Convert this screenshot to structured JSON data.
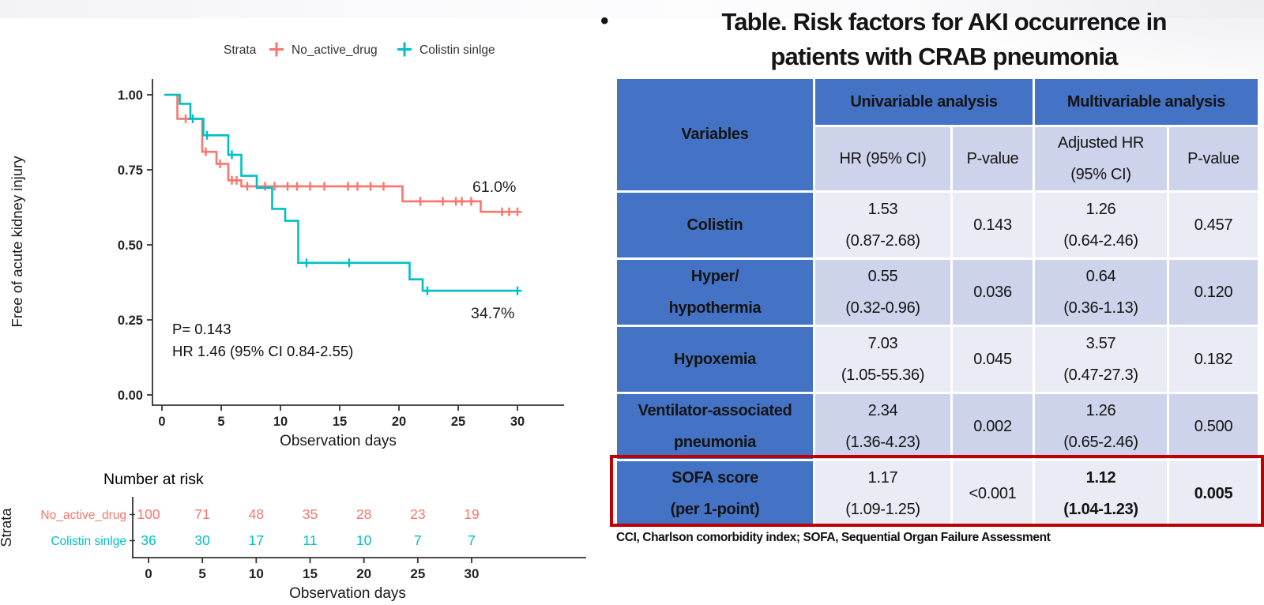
{
  "slide": {
    "title_bullet": "•",
    "title_line1": "Table. Risk factors for AKI occurrence in",
    "title_line2": "patients with CRAB pneumonia"
  },
  "table": {
    "header": {
      "variables": "Variables",
      "univariable": "Univariable analysis",
      "multivariable": "Multivariable analysis",
      "uni_hr": "HR (95% CI)",
      "uni_p": "P-value",
      "multi_hr_line1": "Adjusted HR",
      "multi_hr_line2": "(95% CI)",
      "multi_p": "P-value"
    },
    "rows": [
      {
        "variable_line1": "Colistin",
        "variable_line2": "",
        "uni_hr": "1.53",
        "uni_ci": "(0.87-2.68)",
        "uni_p": "0.143",
        "multi_hr": "1.26",
        "multi_ci": "(0.64-2.46)",
        "multi_p": "0.457"
      },
      {
        "variable_line1": "Hyper/",
        "variable_line2": "hypothermia",
        "uni_hr": "0.55",
        "uni_ci": "(0.32-0.96)",
        "uni_p": "0.036",
        "multi_hr": "0.64",
        "multi_ci": "(0.36-1.13)",
        "multi_p": "0.120"
      },
      {
        "variable_line1": "Hypoxemia",
        "variable_line2": "",
        "uni_hr": "7.03",
        "uni_ci": "(1.05-55.36)",
        "uni_p": "0.045",
        "multi_hr": "3.57",
        "multi_ci": "(0.47-27.3)",
        "multi_p": "0.182"
      },
      {
        "variable_line1": "Ventilator-associated",
        "variable_line2": "pneumonia",
        "uni_hr": "2.34",
        "uni_ci": "(1.36-4.23)",
        "uni_p": "0.002",
        "multi_hr": "1.26",
        "multi_ci": "(0.65-2.46)",
        "multi_p": "0.500"
      },
      {
        "variable_line1": "SOFA score",
        "variable_line2": "(per 1-point)",
        "uni_hr": "1.17",
        "uni_ci": "(1.09-1.25)",
        "uni_p": "<0.001",
        "multi_hr": "1.12",
        "multi_ci": "(1.04-1.23)",
        "multi_p": "0.005"
      }
    ],
    "footnote": "CCI, Charlson comorbidity index; SOFA, Sequential Organ Failure Assessment"
  },
  "chart_data": {
    "type": "line",
    "subtype": "kaplan-meier",
    "title": "",
    "xlabel": "Observation days",
    "ylabel": "Free of acute kidney injury",
    "legend_title": "Strata",
    "legend_position": "top",
    "grid": false,
    "xlim": [
      0,
      30
    ],
    "ylim": [
      0,
      1
    ],
    "xticks": [
      0,
      5,
      10,
      15,
      20,
      25,
      30
    ],
    "yticks": [
      [
        "1.00",
        1.0
      ],
      [
        "0.75",
        0.75
      ],
      [
        "0.50",
        0.5
      ],
      [
        "0.25",
        0.25
      ],
      [
        "0.00",
        0.0
      ]
    ],
    "annotations": {
      "p_value": "P= 0.143",
      "hr": "HR 1.46 (95% CI 0.84-2.55)",
      "end_label_red": "61.0%",
      "end_label_teal": "34.7%"
    },
    "series": [
      {
        "name": "No_active_drug",
        "color": "#F8766D",
        "final_value_pct": 61.0,
        "steps": [
          [
            0.2,
            1.0
          ],
          [
            1.3,
            1.0
          ],
          [
            1.3,
            0.92
          ],
          [
            3.4,
            0.92
          ],
          [
            3.4,
            0.81
          ],
          [
            4.6,
            0.81
          ],
          [
            4.6,
            0.77
          ],
          [
            5.6,
            0.77
          ],
          [
            5.6,
            0.715
          ],
          [
            6.7,
            0.715
          ],
          [
            6.7,
            0.695
          ],
          [
            20.3,
            0.695
          ],
          [
            20.3,
            0.645
          ],
          [
            26.9,
            0.645
          ],
          [
            26.9,
            0.61
          ],
          [
            30,
            0.61
          ]
        ],
        "censors": [
          [
            2.0,
            0.92
          ],
          [
            3.7,
            0.81
          ],
          [
            4.9,
            0.77
          ],
          [
            5.9,
            0.715
          ],
          [
            6.3,
            0.715
          ],
          [
            7.2,
            0.695
          ],
          [
            8.7,
            0.695
          ],
          [
            9.5,
            0.695
          ],
          [
            10.6,
            0.695
          ],
          [
            11.4,
            0.695
          ],
          [
            12.5,
            0.695
          ],
          [
            13.7,
            0.695
          ],
          [
            15.7,
            0.695
          ],
          [
            16.5,
            0.695
          ],
          [
            17.6,
            0.695
          ],
          [
            18.7,
            0.695
          ],
          [
            21.8,
            0.645
          ],
          [
            23.7,
            0.645
          ],
          [
            24.8,
            0.645
          ],
          [
            25.3,
            0.645
          ],
          [
            26.1,
            0.645
          ],
          [
            28.7,
            0.61
          ],
          [
            29.3,
            0.61
          ],
          [
            30,
            0.61
          ]
        ]
      },
      {
        "name": "Colistin sinlge",
        "color": "#00BFC4",
        "final_value_pct": 34.7,
        "steps": [
          [
            0.2,
            1.0
          ],
          [
            1.5,
            1.0
          ],
          [
            1.5,
            0.97
          ],
          [
            2.4,
            0.97
          ],
          [
            2.4,
            0.92
          ],
          [
            3.5,
            0.92
          ],
          [
            3.5,
            0.865
          ],
          [
            5.6,
            0.865
          ],
          [
            5.6,
            0.8
          ],
          [
            6.7,
            0.8
          ],
          [
            6.7,
            0.73
          ],
          [
            8.0,
            0.73
          ],
          [
            8.0,
            0.69
          ],
          [
            9.3,
            0.69
          ],
          [
            9.3,
            0.62
          ],
          [
            10.4,
            0.62
          ],
          [
            10.4,
            0.58
          ],
          [
            11.5,
            0.58
          ],
          [
            11.5,
            0.44
          ],
          [
            20.9,
            0.44
          ],
          [
            20.9,
            0.385
          ],
          [
            22.0,
            0.385
          ],
          [
            22.0,
            0.347
          ],
          [
            30,
            0.347
          ]
        ],
        "censors": [
          [
            2.6,
            0.92
          ],
          [
            3.8,
            0.865
          ],
          [
            5.9,
            0.8
          ],
          [
            12.2,
            0.44
          ],
          [
            15.8,
            0.44
          ],
          [
            22.4,
            0.347
          ],
          [
            30,
            0.347
          ]
        ]
      }
    ],
    "risk_table": {
      "title": "Number at risk",
      "ylabel": "Strata",
      "xlabel": "Observation days",
      "xticks": [
        0,
        5,
        10,
        15,
        20,
        25,
        30
      ],
      "rows": [
        {
          "name": "No_active_drug",
          "color": "#F8766D",
          "values": [
            100,
            71,
            48,
            35,
            28,
            23,
            19
          ]
        },
        {
          "name": "Colistin sinlge",
          "color": "#00BFC4",
          "values": [
            36,
            30,
            17,
            11,
            10,
            7,
            7
          ]
        }
      ]
    }
  }
}
